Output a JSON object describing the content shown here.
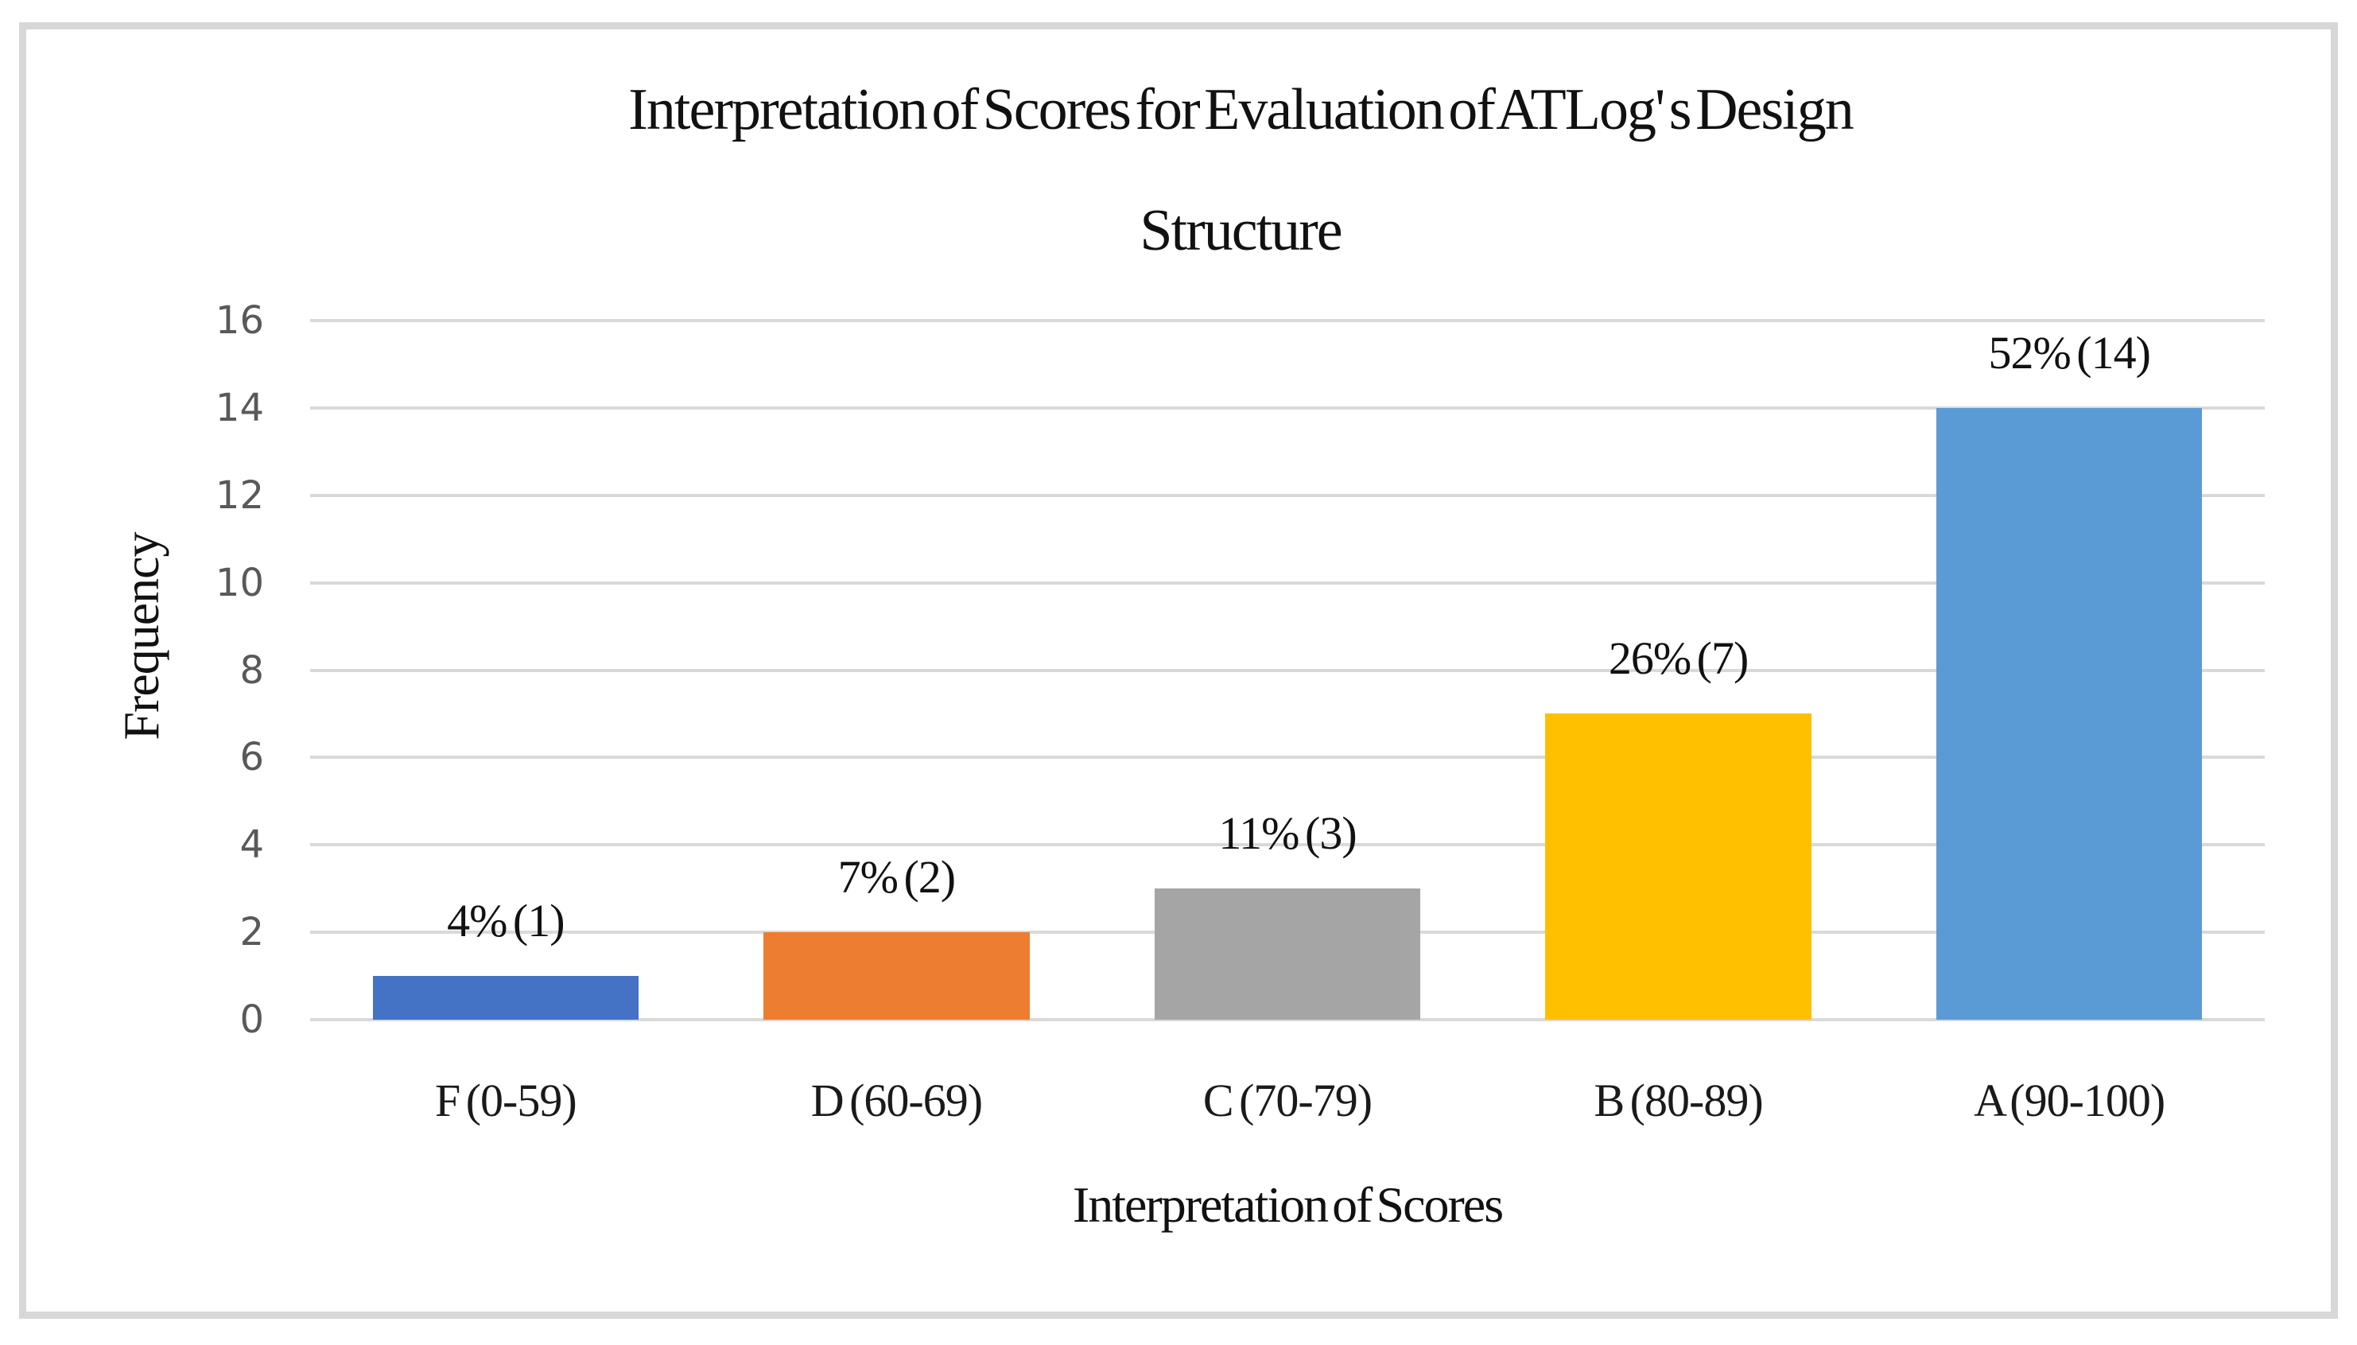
{
  "figure": {
    "frame_border_color": "#d7d7d7",
    "background_color": "#ffffff"
  },
  "chart_data": {
    "type": "bar",
    "title": "Interpretation of Scores for Evaluation of ATLog' s Design Structure",
    "title_lines": [
      "Interpretation of Scores for Evaluation of ATLog' s Design",
      "Structure"
    ],
    "xlabel": "Interpretation of Scores",
    "ylabel": "Frequency",
    "categories": [
      "F (0-59)",
      "D (60-69)",
      "C (70-79)",
      "B (80-89)",
      "A (90-100)"
    ],
    "values": [
      1,
      2,
      3,
      7,
      14
    ],
    "data_labels": [
      "4% (1)",
      "7% (2)",
      "11% (3)",
      "26% (7)",
      "52% (14)"
    ],
    "bar_colors": [
      "#4472C4",
      "#ED7D31",
      "#A5A5A5",
      "#FFC000",
      "#5B9BD5"
    ],
    "ylim": [
      0,
      16
    ],
    "yticks": [
      0,
      2,
      4,
      6,
      8,
      10,
      12,
      14,
      16
    ],
    "grid": "horizontal",
    "gridline_color": "#d9d9d9",
    "tick_label_color": "#595959",
    "text_color": "#111111",
    "legend": "none"
  }
}
